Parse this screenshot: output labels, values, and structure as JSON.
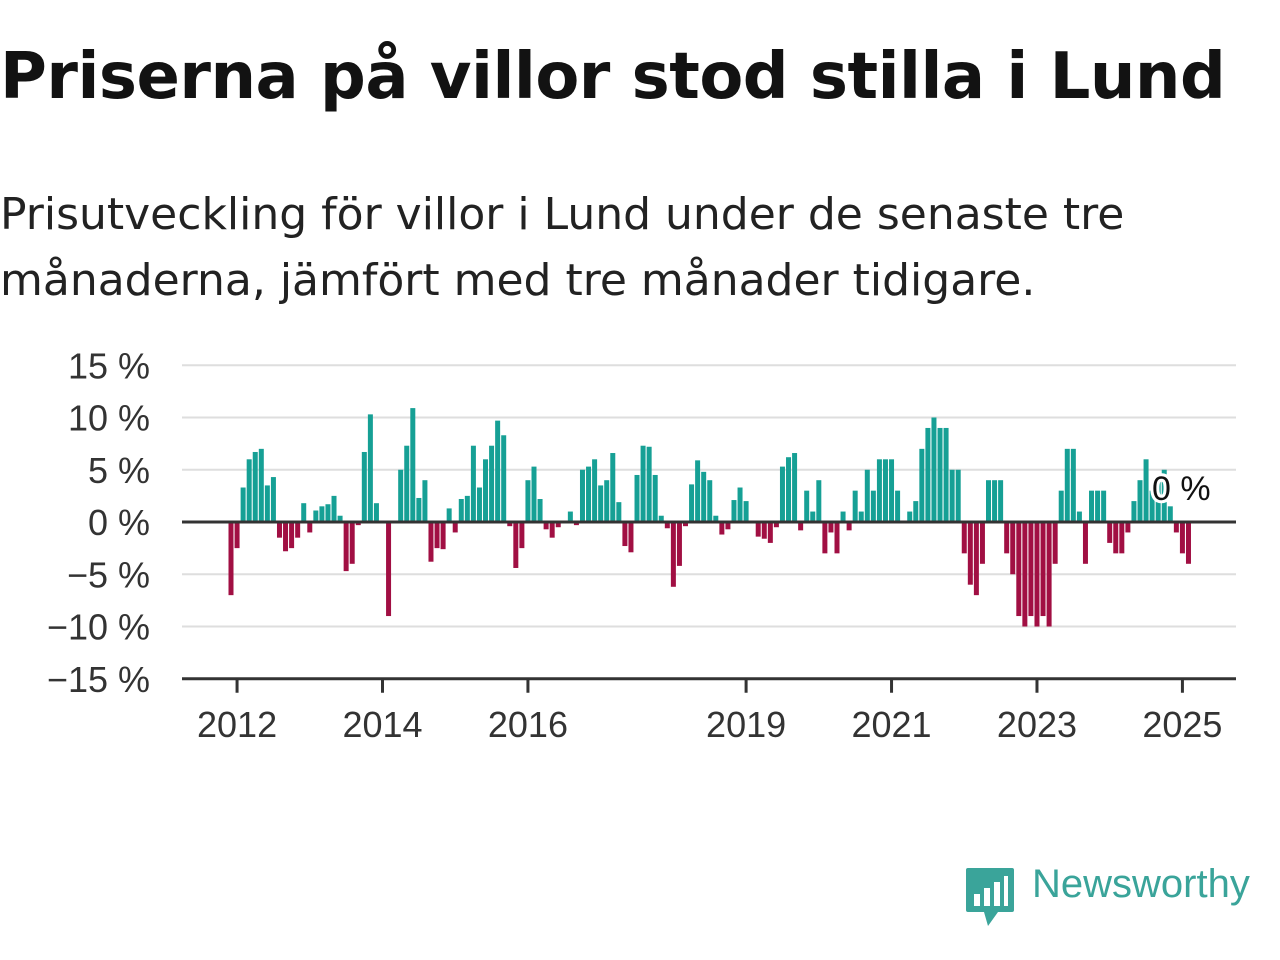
{
  "title": "Priserna på villor stod stilla i Lund",
  "subtitle": "Prisutveckling för villor i Lund under de senaste tre månaderna, jämfört med tre månader tidigare.",
  "brand": {
    "name": "Newsworthy",
    "icon": "newsworthy-logo-icon",
    "color": "#3aa49a"
  },
  "colors": {
    "positive": "#16a095",
    "negative": "#a10f43",
    "grid": "#dedede",
    "axis": "#333333"
  },
  "chart_data": {
    "type": "bar",
    "ylim": [
      -15,
      15
    ],
    "yticks": [
      15,
      10,
      5,
      0,
      -5,
      -10,
      -15
    ],
    "ytick_labels": [
      "15 %",
      "10 %",
      "5 %",
      "0 %",
      "−5 %",
      "−10 %",
      "−15 %"
    ],
    "xticks": [
      "2012",
      "2014",
      "2016",
      "2019",
      "2021",
      "2023",
      "2025"
    ],
    "x_start": "2011-12",
    "annotation": "0 %",
    "values": [
      -7,
      -2.5,
      3.3,
      6,
      6.7,
      7,
      3.5,
      4.3,
      -1.5,
      -2.8,
      -2.5,
      -1.5,
      1.8,
      -1,
      1.1,
      1.5,
      1.7,
      2.5,
      0.6,
      -4.7,
      -4,
      -0.3,
      6.7,
      10.3,
      1.8,
      0,
      -9,
      0,
      5,
      7.3,
      10.9,
      2.3,
      4,
      -3.8,
      -2.5,
      -2.6,
      1.3,
      -1,
      2.2,
      2.5,
      7.3,
      3.3,
      6,
      7.3,
      9.7,
      8.3,
      -0.4,
      -4.4,
      -2.5,
      4,
      5.3,
      2.2,
      -0.7,
      -1.5,
      -0.5,
      0,
      1,
      -0.3,
      5,
      5.3,
      6,
      3.5,
      4,
      6.6,
      1.9,
      -2.3,
      -2.9,
      4.5,
      7.3,
      7.2,
      4.5,
      0.6,
      -0.6,
      -6.2,
      -4.2,
      -0.4,
      3.6,
      5.9,
      4.8,
      4,
      0.6,
      -1.2,
      -0.7,
      2.1,
      3.3,
      2,
      0,
      -1.4,
      -1.6,
      -2,
      -0.5,
      5.3,
      6.2,
      6.6,
      -0.8,
      3,
      1,
      4,
      -3,
      -1,
      -3,
      1,
      -0.8,
      3,
      1,
      5,
      3,
      6,
      6,
      6,
      3,
      0,
      1,
      2,
      7,
      9,
      10,
      9,
      9,
      5,
      5,
      -3,
      -6,
      -7,
      -4,
      4,
      4,
      4,
      -3,
      -5,
      -9,
      -10,
      -9,
      -10,
      -9,
      -10,
      -4,
      3,
      7,
      7,
      1,
      -4,
      3,
      3,
      3,
      -2,
      -3,
      -3,
      -1,
      2,
      4,
      6,
      3,
      4,
      5,
      1.5,
      -1,
      -3,
      -4
    ]
  }
}
